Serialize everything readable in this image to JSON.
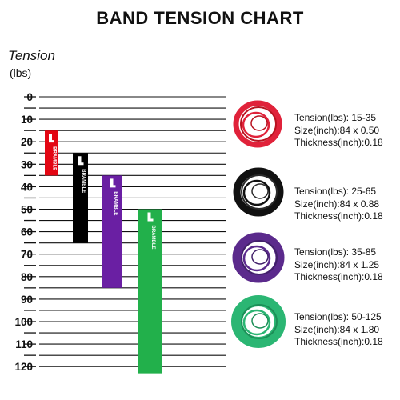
{
  "title": "BAND TENSION CHART",
  "axis_title": "Tension",
  "axis_unit": "(lbs)",
  "chart_data": {
    "type": "bar",
    "subtype": "floating-range",
    "ylim": [
      0,
      123
    ],
    "y_inverted": true,
    "y_ticks": [
      0,
      10,
      20,
      30,
      40,
      50,
      60,
      70,
      80,
      90,
      100,
      110,
      120
    ],
    "grid": true,
    "bands": [
      {
        "color": "#e30613",
        "min": 15,
        "max": 35,
        "brand": "BRAMBLE"
      },
      {
        "color": "#000000",
        "min": 25,
        "max": 65,
        "brand": "BRAMBLE"
      },
      {
        "color": "#6a1fa3",
        "min": 35,
        "max": 85,
        "brand": "BRAMBLE"
      },
      {
        "color": "#22b04b",
        "min": 50,
        "max": 125,
        "brand": "BRAMBLE"
      }
    ]
  },
  "specs": [
    {
      "tension": "Tension(lbs): 15-35",
      "size": "Size(inch):84 x 0.50",
      "thickness": "Thickness(inch):0.18",
      "color": "#e0223a",
      "inner": "#b8121f"
    },
    {
      "tension": "Tension(lbs): 25-65",
      "size": "Size(inch):84 x 0.88",
      "thickness": "Thickness(inch):0.18",
      "color": "#111111",
      "inner": "#2a2a2a"
    },
    {
      "tension": "Tension(lbs): 35-85",
      "size": "Size(inch):84 x 1.25",
      "thickness": "Thickness(inch):0.18",
      "color": "#5b2a8c",
      "inner": "#42206a"
    },
    {
      "tension": "Tension(lbs): 50-125",
      "size": "Size(inch):84 x 1.80",
      "thickness": "Thickness(inch):0.18",
      "color": "#2bb673",
      "inner": "#1c8f57"
    }
  ]
}
